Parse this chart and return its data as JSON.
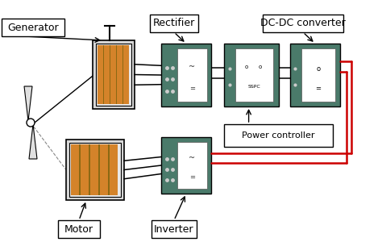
{
  "background_color": "#ffffff",
  "labels": {
    "generator": "Generator",
    "rectifier": "Rectifier",
    "dc_dc": "DC-DC converter",
    "motor": "Motor",
    "inverter": "Inverter",
    "power_controller": "Power controller",
    "sspc": "SSPC"
  },
  "colors": {
    "component_box": "#4a7a6a",
    "wire_black": "#000000",
    "wire_red": "#cc0000",
    "motor_coil": "#d4832a",
    "motor_coil_dark": "#8B6914",
    "motor_body": "#d8d8d8",
    "motor_inner": "#e8e8e8",
    "white_panel": "#ffffff",
    "dashed_line": "#888888",
    "dot_color": "#cccccc"
  }
}
